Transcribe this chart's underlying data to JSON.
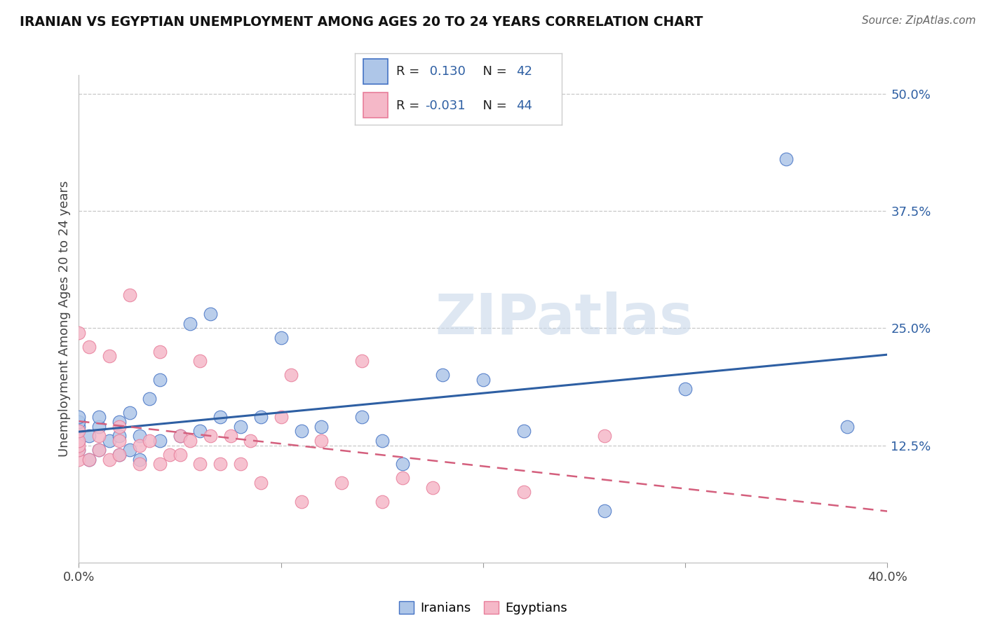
{
  "title": "IRANIAN VS EGYPTIAN UNEMPLOYMENT AMONG AGES 20 TO 24 YEARS CORRELATION CHART",
  "source": "Source: ZipAtlas.com",
  "ylabel": "Unemployment Among Ages 20 to 24 years",
  "xlim": [
    0.0,
    0.4
  ],
  "ylim": [
    0.0,
    0.52
  ],
  "xticks": [
    0.0,
    0.1,
    0.2,
    0.3,
    0.4
  ],
  "xtick_labels": [
    "0.0%",
    "",
    "",
    "",
    "40.0%"
  ],
  "yticks": [
    0.0,
    0.125,
    0.25,
    0.375,
    0.5
  ],
  "ytick_labels": [
    "",
    "12.5%",
    "25.0%",
    "37.5%",
    "50.0%"
  ],
  "legend_labels": [
    "Iranians",
    "Egyptians"
  ],
  "blue_fill": "#aec6e8",
  "pink_fill": "#f5b8c8",
  "blue_edge": "#4472c4",
  "pink_edge": "#e87d9a",
  "blue_line_color": "#2e5fa3",
  "pink_line_color": "#d45f7d",
  "r_blue": 0.13,
  "n_blue": 42,
  "r_pink": -0.031,
  "n_pink": 44,
  "watermark": "ZIPatlas",
  "background_color": "#ffffff",
  "iranians_x": [
    0.0,
    0.0,
    0.0,
    0.0,
    0.0,
    0.0,
    0.005,
    0.005,
    0.01,
    0.01,
    0.01,
    0.015,
    0.02,
    0.02,
    0.02,
    0.025,
    0.025,
    0.03,
    0.03,
    0.035,
    0.04,
    0.04,
    0.05,
    0.055,
    0.06,
    0.065,
    0.07,
    0.08,
    0.09,
    0.1,
    0.11,
    0.12,
    0.14,
    0.15,
    0.16,
    0.18,
    0.2,
    0.22,
    0.26,
    0.3,
    0.35,
    0.38
  ],
  "iranians_y": [
    0.12,
    0.13,
    0.14,
    0.145,
    0.15,
    0.155,
    0.11,
    0.135,
    0.12,
    0.145,
    0.155,
    0.13,
    0.115,
    0.135,
    0.15,
    0.12,
    0.16,
    0.11,
    0.135,
    0.175,
    0.13,
    0.195,
    0.135,
    0.255,
    0.14,
    0.265,
    0.155,
    0.145,
    0.155,
    0.24,
    0.14,
    0.145,
    0.155,
    0.13,
    0.105,
    0.2,
    0.195,
    0.14,
    0.055,
    0.185,
    0.43,
    0.145
  ],
  "egyptians_x": [
    0.0,
    0.0,
    0.0,
    0.0,
    0.0,
    0.0,
    0.005,
    0.005,
    0.01,
    0.01,
    0.015,
    0.015,
    0.02,
    0.02,
    0.02,
    0.025,
    0.03,
    0.03,
    0.035,
    0.04,
    0.04,
    0.045,
    0.05,
    0.05,
    0.055,
    0.06,
    0.06,
    0.065,
    0.07,
    0.075,
    0.08,
    0.085,
    0.09,
    0.1,
    0.105,
    0.11,
    0.12,
    0.13,
    0.14,
    0.15,
    0.16,
    0.175,
    0.22,
    0.26
  ],
  "egyptians_y": [
    0.11,
    0.12,
    0.125,
    0.13,
    0.14,
    0.245,
    0.11,
    0.23,
    0.12,
    0.135,
    0.11,
    0.22,
    0.115,
    0.13,
    0.145,
    0.285,
    0.105,
    0.125,
    0.13,
    0.105,
    0.225,
    0.115,
    0.115,
    0.135,
    0.13,
    0.105,
    0.215,
    0.135,
    0.105,
    0.135,
    0.105,
    0.13,
    0.085,
    0.155,
    0.2,
    0.065,
    0.13,
    0.085,
    0.215,
    0.065,
    0.09,
    0.08,
    0.075,
    0.135
  ]
}
